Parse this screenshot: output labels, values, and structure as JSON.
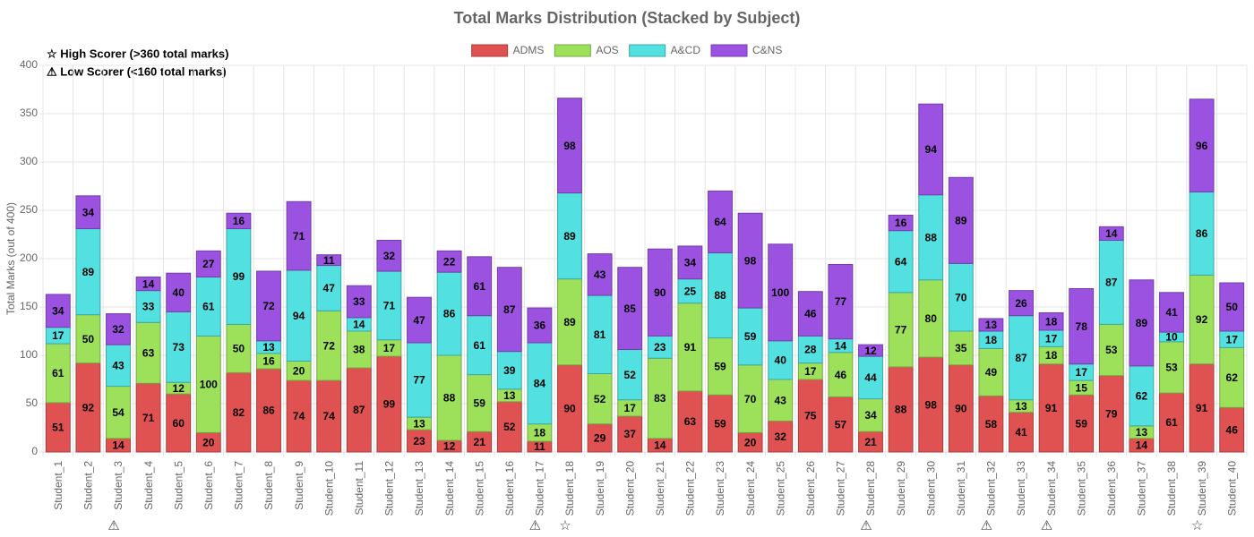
{
  "chart_data": {
    "type": "stacked_bar",
    "title": "Total Marks Distribution (Stacked by Subject)",
    "y_label": "Total Marks (out of 400)",
    "notes": [
      "☆ High Scorer (>360 total marks)",
      "⚠ Low Scorer (<160 total marks)"
    ],
    "categories": [
      "Student_1",
      "Student_2",
      "Student_3",
      "Student_4",
      "Student_5",
      "Student_6",
      "Student_7",
      "Student_8",
      "Student_9",
      "Student_10",
      "Student_11",
      "Student_12",
      "Student_13",
      "Student_14",
      "Student_15",
      "Student_16",
      "Student_17",
      "Student_18",
      "Student_19",
      "Student_20",
      "Student_21",
      "Student_22",
      "Student_23",
      "Student_24",
      "Student_25",
      "Student_26",
      "Student_27",
      "Student_28",
      "Student_29",
      "Student_30",
      "Student_31",
      "Student_32",
      "Student_33",
      "Student_34",
      "Student_35",
      "Student_36",
      "Student_37",
      "Student_38",
      "Student_39",
      "Student_40"
    ],
    "category_markers": [
      null,
      null,
      "⚠",
      null,
      null,
      null,
      null,
      null,
      null,
      null,
      null,
      null,
      null,
      null,
      null,
      null,
      "⚠",
      "☆",
      null,
      null,
      null,
      null,
      null,
      null,
      null,
      null,
      null,
      "⚠",
      null,
      null,
      null,
      "⚠",
      null,
      "⚠",
      null,
      null,
      null,
      null,
      "☆",
      null
    ],
    "series": [
      {
        "name": "ADMS",
        "color": "#e05252",
        "values": [
          51,
          92,
          14,
          71,
          60,
          20,
          82,
          86,
          74,
          74,
          87,
          99,
          23,
          12,
          21,
          52,
          11,
          90,
          29,
          37,
          14,
          63,
          59,
          20,
          32,
          75,
          57,
          21,
          88,
          98,
          90,
          58,
          41,
          91,
          59,
          79,
          14,
          61,
          91,
          46
        ]
      },
      {
        "name": "AOS",
        "color": "#9de05a",
        "values": [
          61,
          50,
          54,
          63,
          12,
          100,
          50,
          16,
          20,
          72,
          38,
          17,
          13,
          88,
          59,
          13,
          18,
          89,
          52,
          17,
          83,
          91,
          59,
          70,
          43,
          17,
          46,
          34,
          77,
          80,
          35,
          49,
          13,
          18,
          15,
          53,
          13,
          53,
          92,
          62
        ]
      },
      {
        "name": "A&CD",
        "color": "#52e0e0",
        "values": [
          17,
          89,
          43,
          33,
          73,
          61,
          99,
          13,
          94,
          47,
          14,
          71,
          77,
          86,
          61,
          39,
          84,
          89,
          81,
          52,
          23,
          25,
          88,
          59,
          40,
          28,
          14,
          44,
          64,
          88,
          70,
          18,
          87,
          17,
          17,
          87,
          62,
          10,
          86,
          17
        ]
      },
      {
        "name": "C&NS",
        "color": "#9b52e0",
        "values": [
          34,
          34,
          32,
          14,
          40,
          27,
          16,
          72,
          71,
          11,
          33,
          32,
          47,
          22,
          61,
          87,
          36,
          98,
          43,
          85,
          90,
          34,
          64,
          98,
          100,
          46,
          77,
          12,
          16,
          94,
          89,
          13,
          26,
          18,
          78,
          14,
          89,
          41,
          96,
          50
        ]
      }
    ],
    "ylim": [
      0,
      400
    ],
    "yticks": [
      0,
      50,
      100,
      150,
      200,
      250,
      300,
      350,
      400
    ],
    "grid": true
  }
}
